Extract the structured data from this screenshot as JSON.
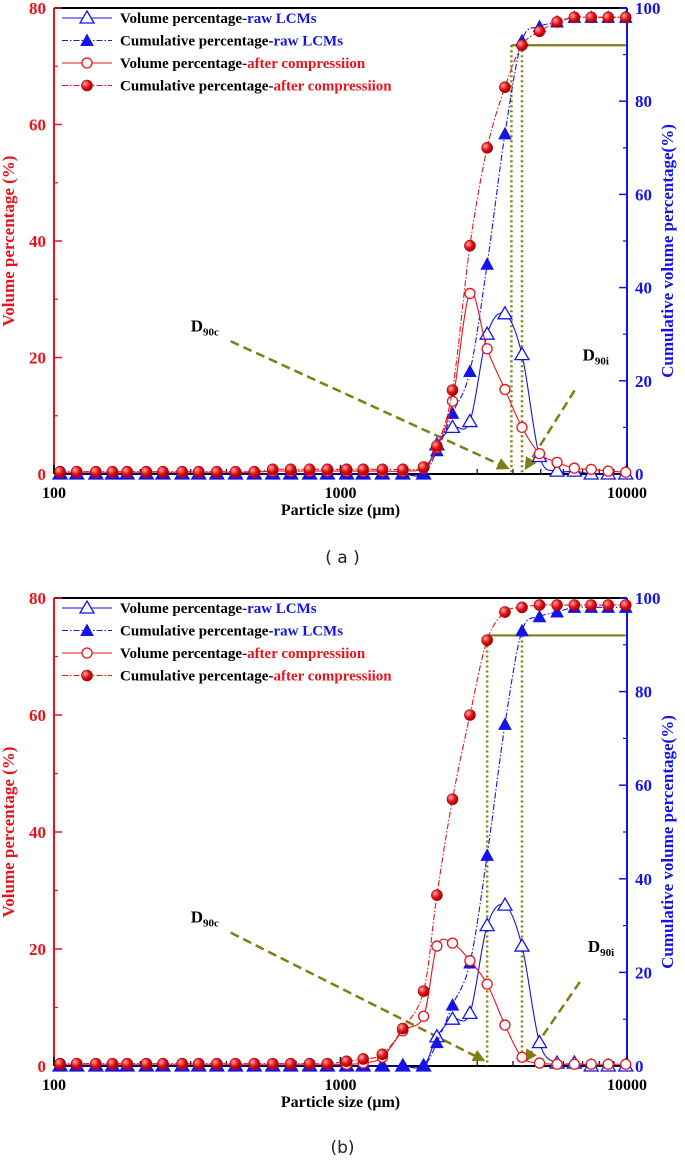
{
  "captions": [
    "( a )",
    "(b)"
  ],
  "colors": {
    "red": "#e8141b",
    "blue": "#1414e6",
    "olive": "#7f7f10",
    "axis": "#000000"
  },
  "chart_data": [
    {
      "type": "line",
      "panel": "a",
      "xlabel": "Particle size (μm)",
      "ylabel_left": "Volume percentage (%)",
      "ylabel_right": "Cumulative volume percentage(%)",
      "xscale": "log",
      "xlim": [
        100,
        10000
      ],
      "ylim_left": [
        0,
        80
      ],
      "ylim_right": [
        0,
        100
      ],
      "x_ticks": [
        "100",
        "1000",
        "10000"
      ],
      "y_ticks_left": [
        "0",
        "20",
        "40",
        "60",
        "80"
      ],
      "y_ticks_right": [
        "0",
        "20",
        "40",
        "60",
        "80",
        "100"
      ],
      "legend_position": "top-left",
      "legend": [
        {
          "prefix": "Volume percentage-",
          "suffix": "raw LCMs",
          "suffix_color": "blue"
        },
        {
          "prefix": "Cumulative percentage-",
          "suffix": "raw LCMs",
          "suffix_color": "blue"
        },
        {
          "prefix": "Volume percentage-",
          "suffix": "after compressiion",
          "suffix_color": "red"
        },
        {
          "prefix": "Cumulative percentage-",
          "suffix": "after compressiion",
          "suffix_color": "red"
        }
      ],
      "series": [
        {
          "name": "Volume percentage-raw LCMs",
          "axis": "left",
          "color": "blue",
          "marker": "open-triangle",
          "line": "solid",
          "x": [
            105,
            120,
            140,
            160,
            180,
            210,
            240,
            280,
            320,
            370,
            430,
            500,
            580,
            670,
            780,
            900,
            1050,
            1200,
            1400,
            1650,
            1950,
            2170,
            2460,
            2830,
            3250,
            3750,
            4300,
            4950,
            5700,
            6550,
            7500,
            8600,
            9900
          ],
          "y": [
            0,
            0,
            0,
            0,
            0,
            0,
            0,
            0,
            0,
            0,
            0,
            0,
            0,
            0,
            0,
            0,
            0,
            0,
            0,
            0,
            0,
            5,
            8,
            9,
            24,
            27.5,
            20.5,
            3,
            0.5,
            0.5,
            0,
            0,
            0
          ]
        },
        {
          "name": "Cumulative percentage-raw LCMs",
          "axis": "right",
          "color": "blue",
          "marker": "filled-triangle",
          "line": "dashdot",
          "x": [
            105,
            120,
            140,
            160,
            180,
            210,
            240,
            280,
            320,
            370,
            430,
            500,
            580,
            670,
            780,
            900,
            1050,
            1200,
            1400,
            1650,
            1950,
            2170,
            2460,
            2830,
            3250,
            3750,
            4300,
            4950,
            5700,
            6550,
            7500,
            8600,
            9900
          ],
          "y": [
            0,
            0,
            0,
            0,
            0,
            0,
            0,
            0,
            0,
            0,
            0,
            0,
            0,
            0,
            0,
            0,
            0,
            0,
            0,
            0,
            0,
            5,
            13,
            22,
            45,
            73,
            93,
            96,
            97,
            98,
            98,
            98,
            98
          ]
        },
        {
          "name": "Volume percentage-after compressiion",
          "axis": "left",
          "color": "red",
          "marker": "open-circle",
          "line": "solid",
          "x": [
            105,
            120,
            140,
            160,
            180,
            210,
            240,
            280,
            320,
            370,
            430,
            500,
            580,
            670,
            780,
            900,
            1050,
            1200,
            1400,
            1650,
            1950,
            2170,
            2460,
            2830,
            3250,
            3750,
            4300,
            4950,
            5700,
            6550,
            7500,
            8600,
            9900
          ],
          "y": [
            0.3,
            0.3,
            0.3,
            0.3,
            0.3,
            0.3,
            0.3,
            0.3,
            0.3,
            0.3,
            0.3,
            0.3,
            0.5,
            0.5,
            0.5,
            0.5,
            0.5,
            0.5,
            0.5,
            0.5,
            1,
            4.5,
            12.5,
            31,
            21.5,
            14.5,
            8,
            3.5,
            2,
            1,
            0.8,
            0.5,
            0.3
          ]
        },
        {
          "name": "Cumulative percentage-after compressiion",
          "axis": "right",
          "color": "red",
          "marker": "filled-circle",
          "line": "dashdot",
          "x": [
            105,
            120,
            140,
            160,
            180,
            210,
            240,
            280,
            320,
            370,
            430,
            500,
            580,
            670,
            780,
            900,
            1050,
            1200,
            1400,
            1650,
            1950,
            2170,
            2460,
            2830,
            3250,
            3750,
            4300,
            4950,
            5700,
            6550,
            7500,
            8600,
            9900
          ],
          "y": [
            0.5,
            0.5,
            0.5,
            0.5,
            0.5,
            0.5,
            0.5,
            0.5,
            0.5,
            0.5,
            0.5,
            0.5,
            1,
            1,
            1,
            1,
            1,
            1,
            1,
            1,
            1.5,
            6,
            18,
            49,
            70,
            83,
            92,
            95,
            97,
            98,
            98,
            98,
            98
          ]
        }
      ],
      "annotations": {
        "threshold_y_right": 92,
        "threshold_x_end": 9900,
        "d90c": {
          "label": "D",
          "sub": "90c",
          "x": 3950,
          "text_x": 300,
          "text_y": 24.5
        },
        "d90i": {
          "label": "D",
          "sub": "90i",
          "x": 4300,
          "text_x": 7000,
          "text_y": 19.5
        }
      }
    },
    {
      "type": "line",
      "panel": "b",
      "xlabel": "Particle size (μm)",
      "ylabel_left": "Volume percentage (%)",
      "ylabel_right": "Cumulative volume percentage(%)",
      "xscale": "log",
      "xlim": [
        100,
        10000
      ],
      "ylim_left": [
        0,
        80
      ],
      "ylim_right": [
        0,
        100
      ],
      "x_ticks": [
        "100",
        "1000",
        "10000"
      ],
      "y_ticks_left": [
        "0",
        "20",
        "40",
        "60",
        "80"
      ],
      "y_ticks_right": [
        "0",
        "20",
        "40",
        "60",
        "80",
        "100"
      ],
      "legend_position": "top-left",
      "legend": [
        {
          "prefix": "Volume percentage-",
          "suffix": "raw LCMs",
          "suffix_color": "blue"
        },
        {
          "prefix": "Cumulative percentage-",
          "suffix": "raw LCMs",
          "suffix_color": "blue"
        },
        {
          "prefix": "Volume percentage-",
          "suffix": "after compressiion",
          "suffix_color": "red"
        },
        {
          "prefix": "Cumulative percentage-",
          "suffix": "after compressiion",
          "suffix_color": "red"
        }
      ],
      "series": [
        {
          "name": "Volume percentage-raw LCMs",
          "axis": "left",
          "color": "blue",
          "marker": "open-triangle",
          "line": "solid",
          "x": [
            105,
            120,
            140,
            160,
            180,
            210,
            240,
            280,
            320,
            370,
            430,
            500,
            580,
            670,
            780,
            900,
            1050,
            1200,
            1400,
            1650,
            1950,
            2170,
            2460,
            2830,
            3250,
            3750,
            4300,
            4950,
            5700,
            6550,
            7500,
            8600,
            9900
          ],
          "y": [
            0,
            0,
            0,
            0,
            0,
            0,
            0,
            0,
            0,
            0,
            0,
            0,
            0,
            0,
            0,
            0,
            0,
            0,
            0,
            0,
            0,
            5,
            8,
            9,
            24,
            27.5,
            20.5,
            4,
            0.5,
            0.5,
            0,
            0,
            0
          ]
        },
        {
          "name": "Cumulative percentage-raw LCMs",
          "axis": "right",
          "color": "blue",
          "marker": "filled-triangle",
          "line": "dashdot",
          "x": [
            105,
            120,
            140,
            160,
            180,
            210,
            240,
            280,
            320,
            370,
            430,
            500,
            580,
            670,
            780,
            900,
            1050,
            1200,
            1400,
            1650,
            1950,
            2170,
            2460,
            2830,
            3250,
            3750,
            4300,
            4950,
            5700,
            6550,
            7500,
            8600,
            9900
          ],
          "y": [
            0,
            0,
            0,
            0,
            0,
            0,
            0,
            0,
            0,
            0,
            0,
            0,
            0,
            0,
            0,
            0,
            0,
            0,
            0,
            0,
            0,
            5,
            13,
            22,
            45,
            73,
            93,
            96,
            97,
            98,
            98,
            98,
            98
          ]
        },
        {
          "name": "Volume percentage-after compressiion",
          "axis": "left",
          "color": "red",
          "marker": "open-circle",
          "line": "solid",
          "x": [
            105,
            120,
            140,
            160,
            180,
            210,
            240,
            280,
            320,
            370,
            430,
            500,
            580,
            670,
            780,
            900,
            1050,
            1200,
            1400,
            1650,
            1950,
            2170,
            2460,
            2830,
            3250,
            3750,
            4300,
            4950,
            5700,
            6550,
            7500,
            8600,
            9900
          ],
          "y": [
            0.3,
            0.3,
            0.3,
            0.3,
            0.3,
            0.3,
            0.3,
            0.3,
            0.3,
            0.3,
            0.3,
            0.3,
            0.3,
            0.3,
            0.3,
            0.3,
            0.3,
            0.5,
            1.5,
            6,
            8.5,
            20.5,
            21,
            18,
            14,
            7,
            1.5,
            0.5,
            0.3,
            0.3,
            0.3,
            0.3,
            0.3
          ]
        },
        {
          "name": "Cumulative percentage-after compressiion",
          "axis": "right",
          "color": "red",
          "marker": "filled-circle",
          "line": "dashdot",
          "x": [
            105,
            120,
            140,
            160,
            180,
            210,
            240,
            280,
            320,
            370,
            430,
            500,
            580,
            670,
            780,
            900,
            1050,
            1200,
            1400,
            1650,
            1950,
            2170,
            2460,
            2830,
            3250,
            3750,
            4300,
            4950,
            5700,
            6550,
            7500,
            8600,
            9900
          ],
          "y": [
            0.5,
            0.5,
            0.5,
            0.5,
            0.5,
            0.5,
            0.5,
            0.5,
            0.5,
            0.5,
            0.5,
            0.5,
            0.5,
            0.5,
            0.5,
            0.5,
            1,
            1.5,
            2.5,
            8,
            16,
            36.5,
            57,
            75,
            91,
            97,
            98,
            98.5,
            98.5,
            98.5,
            98.5,
            98.5,
            98.5
          ]
        }
      ],
      "annotations": {
        "threshold_y_right": 92,
        "threshold_x_end": 9900,
        "d90c": {
          "label": "D",
          "sub": "90c",
          "x": 3250,
          "text_x": 300,
          "text_y": 24.5
        },
        "d90i": {
          "label": "D",
          "sub": "90i",
          "x": 4300,
          "text_x": 7300,
          "text_y": 19.5
        }
      }
    }
  ]
}
